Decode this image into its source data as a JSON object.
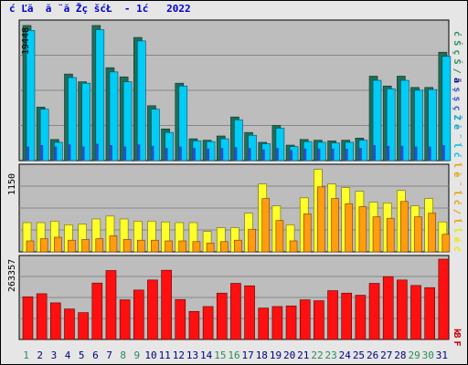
{
  "title": "ć Ľă  ă ¨ă Žç šćŁ  - 1ć   2022",
  "chart_data": [
    {
      "type": "bar",
      "panel": "top",
      "ymax_label": "19448",
      "right_legend": [
        "ć",
        "Ś",
        "ç",
        "Ś",
        "/",
        "ä",
        "ş",
        "ş",
        "ç",
        "Ž",
        "è",
        "¨",
        "ĺ",
        "ć"
      ],
      "right_legend_colors": [
        "#2b8a5a",
        "#2b8a5a",
        "#2b8a5a",
        "#2b8a5a",
        "#2b8a5a",
        "#000080",
        "#3355cc",
        "#3355cc",
        "#3355cc",
        "#00a0c0",
        "#00a0c0",
        "#00c0e0",
        "#00c0e0",
        "#00c0e0"
      ],
      "ylim": [
        0,
        19448
      ],
      "categories": [
        "1",
        "2",
        "3",
        "4",
        "5",
        "6",
        "7",
        "8",
        "9",
        "10",
        "11",
        "12",
        "13",
        "14",
        "15",
        "16",
        "17",
        "18",
        "19",
        "20",
        "21",
        "22",
        "23",
        "24",
        "25",
        "26",
        "27",
        "28",
        "29",
        "30",
        "31"
      ],
      "series": [
        {
          "values": [
            19200,
            7600,
            3000,
            12300,
            11200,
            19200,
            13200,
            11900,
            17500,
            7800,
            4500,
            11000,
            3100,
            2900,
            3500,
            6200,
            4000,
            2600,
            5000,
            2200,
            3000,
            2900,
            2800,
            2900,
            3200,
            12000,
            10600,
            12000,
            10400,
            10400,
            15400
          ]
        },
        {
          "values": [
            18500,
            7300,
            2600,
            11800,
            11000,
            18600,
            12600,
            11200,
            17000,
            7300,
            4000,
            10600,
            2800,
            2700,
            3100,
            5800,
            3600,
            2400,
            4600,
            2000,
            2700,
            2600,
            2500,
            2600,
            2900,
            11400,
            10200,
            11400,
            10000,
            10100,
            14800
          ]
        },
        {
          "values": [
            2000,
            2200,
            2000,
            2300,
            2000,
            2400,
            2200,
            2000,
            2300,
            2100,
            1800,
            2000,
            1800,
            1700,
            1800,
            1900,
            1800,
            1600,
            1800,
            1500,
            1700,
            1700,
            1700,
            1700,
            1800,
            2200,
            2100,
            2100,
            2000,
            2000,
            2200
          ]
        }
      ]
    },
    {
      "type": "bar",
      "panel": "middle",
      "ymax_label": "1150",
      "right_legend": [
        "ĺ",
        "è",
        "¨",
        "ĺ",
        "ć",
        "/",
        "ĺ",
        "ĺ",
        "é",
        "ć"
      ],
      "right_legend_colors": [
        "#e0a000",
        "#e0a000",
        "#e0a000",
        "#e0a000",
        "#e0a000",
        "#e0a000",
        "#e0a000",
        "#e8e800",
        "#e8e800",
        "#e8e800"
      ],
      "ylim": [
        0,
        1150
      ],
      "categories": [
        "1",
        "2",
        "3",
        "4",
        "5",
        "6",
        "7",
        "8",
        "9",
        "10",
        "11",
        "12",
        "13",
        "14",
        "15",
        "16",
        "17",
        "18",
        "19",
        "20",
        "21",
        "22",
        "23",
        "24",
        "25",
        "26",
        "27",
        "28",
        "29",
        "30",
        "31"
      ],
      "series": [
        {
          "values": [
            400,
            400,
            420,
            370,
            380,
            450,
            490,
            450,
            420,
            420,
            410,
            400,
            400,
            280,
            330,
            330,
            530,
            930,
            630,
            370,
            740,
            1130,
            930,
            880,
            830,
            680,
            670,
            840,
            630,
            730,
            410
          ]
        },
        {
          "values": [
            150,
            180,
            200,
            160,
            170,
            180,
            220,
            170,
            160,
            160,
            150,
            150,
            140,
            120,
            140,
            160,
            310,
            730,
            430,
            150,
            520,
            890,
            730,
            660,
            620,
            480,
            460,
            690,
            480,
            530,
            240
          ]
        }
      ]
    },
    {
      "type": "bar",
      "panel": "bottom",
      "ymax_label": "263357",
      "right_legend": [
        "k",
        "B",
        "",
        "F"
      ],
      "right_legend_colors": [
        "#cc0000",
        "#cc0000",
        "#cc0000",
        "#cc0000"
      ],
      "ylim": [
        0,
        263357
      ],
      "categories": [
        "1",
        "2",
        "3",
        "4",
        "5",
        "6",
        "7",
        "8",
        "9",
        "10",
        "11",
        "12",
        "13",
        "14",
        "15",
        "16",
        "17",
        "18",
        "19",
        "20",
        "21",
        "22",
        "23",
        "24",
        "25",
        "26",
        "27",
        "28",
        "29",
        "30",
        "31"
      ],
      "series": [
        {
          "values": [
            140000,
            150000,
            120000,
            100000,
            88000,
            185000,
            226000,
            130000,
            162000,
            195000,
            227000,
            131000,
            92000,
            108000,
            152000,
            184000,
            176000,
            103000,
            108000,
            110000,
            130000,
            127000,
            160000,
            152000,
            145000,
            184000,
            206000,
            195000,
            177000,
            170000,
            263357
          ]
        }
      ]
    }
  ],
  "colors": {
    "top_dark": "#1e6e5a",
    "top_light": "#00ccf5",
    "top_inner": "#2a4fd0",
    "mid_yellow": "#ffff2a",
    "mid_orange": "#ff9c10",
    "bottom_red": "#ff1010",
    "panel_bg": "#bdbdbd",
    "grid": "#888888"
  },
  "day_label_colors": [
    "#2b8a5a",
    "#000080",
    "#000080",
    "#000080",
    "#000080",
    "#000080",
    "#000080",
    "#2b8a5a",
    "#2b8a5a",
    "#000080",
    "#000080",
    "#000080",
    "#000080",
    "#000080",
    "#2b8a5a",
    "#2b8a5a",
    "#000080",
    "#000080",
    "#000080",
    "#000080",
    "#000080",
    "#2b8a5a",
    "#2b8a5a",
    "#000080",
    "#000080",
    "#000080",
    "#000080",
    "#000080",
    "#2b8a5a",
    "#2b8a5a",
    "#000080"
  ]
}
